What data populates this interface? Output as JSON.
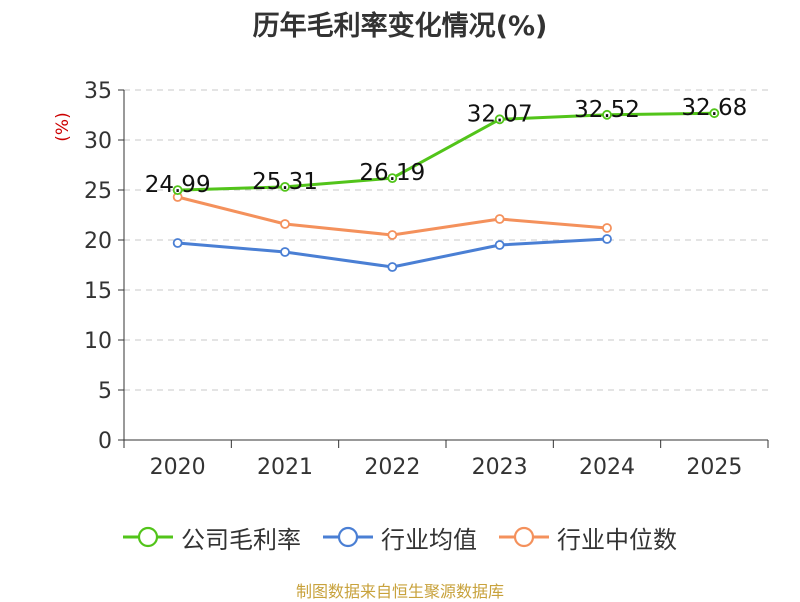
{
  "chart_data": {
    "type": "line",
    "title": "历年毛利率变化情况(%)",
    "ylabel": "(%)",
    "xlabel": "",
    "categories": [
      "2020",
      "2021",
      "2022",
      "2023",
      "2024",
      "2025"
    ],
    "ylim": [
      0,
      35
    ],
    "yticks": [
      0,
      5,
      10,
      15,
      20,
      25,
      30,
      35
    ],
    "grid": true,
    "series": [
      {
        "name": "公司毛利率",
        "color": "#52c41a",
        "values": [
          24.99,
          25.31,
          26.19,
          32.07,
          32.52,
          32.68
        ],
        "labels": [
          "24.99",
          "25.31",
          "26.19",
          "32.07",
          "32.52",
          "32.68"
        ]
      },
      {
        "name": "行业均值",
        "color": "#4a7fd4",
        "values": [
          19.7,
          18.8,
          17.3,
          19.5,
          20.1,
          null
        ]
      },
      {
        "name": "行业中位数",
        "color": "#f4915c",
        "values": [
          24.3,
          21.6,
          20.5,
          22.1,
          21.2,
          null
        ]
      }
    ],
    "legend_position": "bottom",
    "source": "制图数据来自恒生聚源数据库"
  }
}
